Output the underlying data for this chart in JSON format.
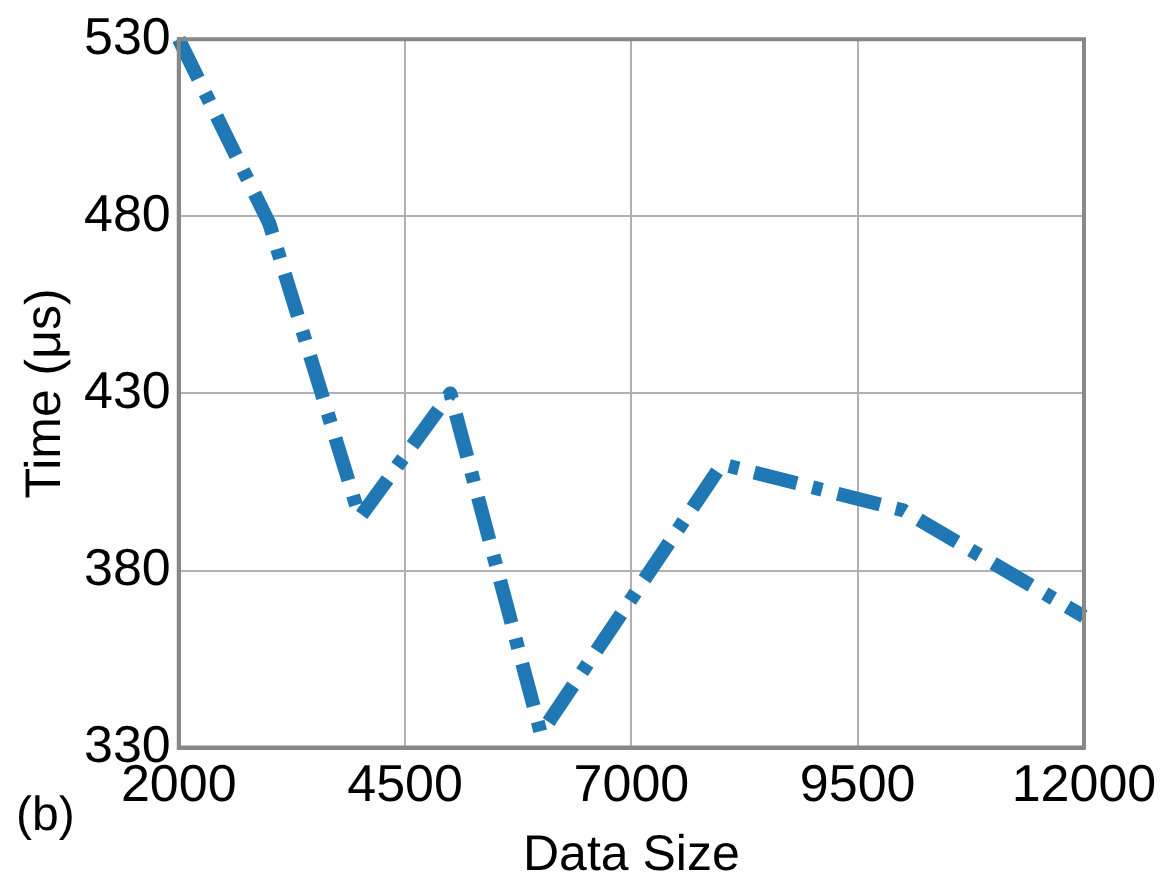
{
  "chart_data": {
    "type": "line",
    "xlabel": "Data Size",
    "ylabel": "Time (μs)",
    "x": [
      2000,
      3000,
      4000,
      5000,
      6000,
      8000,
      10000,
      12000
    ],
    "series": [
      {
        "color": "#1f77b4",
        "values": [
          530,
          478,
          395,
          430,
          334,
          410,
          397,
          367
        ]
      }
    ],
    "xlim": [
      2000,
      12000
    ],
    "xticks": [
      2000,
      4500,
      7000,
      9500,
      12000
    ],
    "ylim": [
      330,
      530
    ],
    "yticks": [
      330,
      380,
      430,
      480,
      530
    ],
    "grid": true,
    "line_style": "dashed",
    "marker": "none",
    "annotations": [
      "(b)"
    ]
  }
}
